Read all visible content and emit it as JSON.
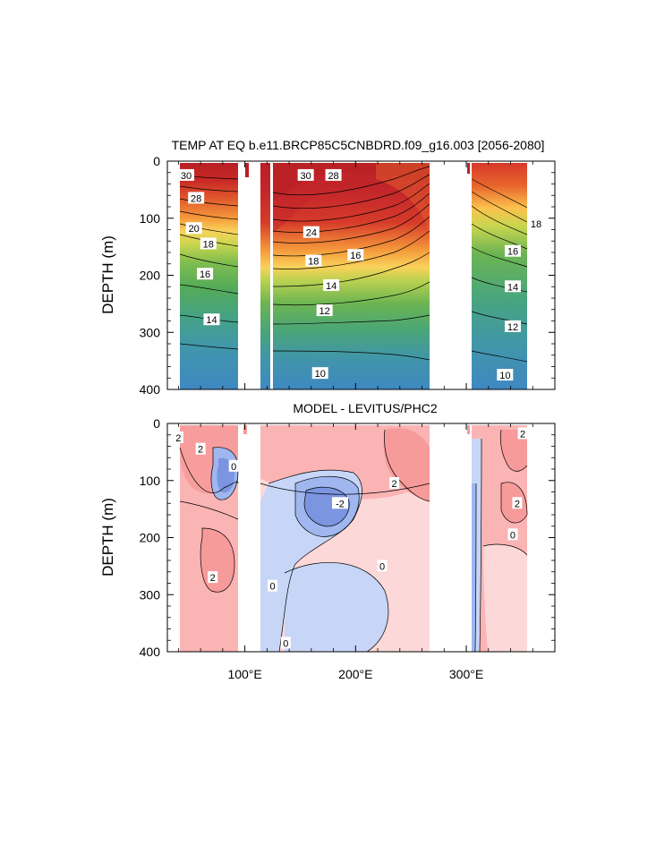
{
  "chart_data": [
    {
      "type": "heatmap",
      "subtype": "filled-contour",
      "title": "TEMP AT EQ b.e11.BRCP85C5CNBDRD.f09_g16.003 [2056-2080]",
      "ylabel": "DEPTH (m)",
      "y_ticks": [
        "0",
        "100",
        "200",
        "300",
        "400"
      ],
      "ylim": [
        0,
        400
      ],
      "y_reversed": true,
      "xlim": [
        30,
        380
      ],
      "x_ticks": [],
      "contour_labels": [
        {
          "text": "30",
          "lon": 47,
          "depth": 25
        },
        {
          "text": "28",
          "lon": 56,
          "depth": 65
        },
        {
          "text": "20",
          "lon": 54,
          "depth": 118
        },
        {
          "text": "18",
          "lon": 67,
          "depth": 145
        },
        {
          "text": "16",
          "lon": 64,
          "depth": 198
        },
        {
          "text": "14",
          "lon": 70,
          "depth": 278
        },
        {
          "text": "30",
          "lon": 155,
          "depth": 25
        },
        {
          "text": "28",
          "lon": 180,
          "depth": 25
        },
        {
          "text": "24",
          "lon": 160,
          "depth": 125
        },
        {
          "text": "18",
          "lon": 162,
          "depth": 175
        },
        {
          "text": "16",
          "lon": 200,
          "depth": 165
        },
        {
          "text": "14",
          "lon": 178,
          "depth": 218
        },
        {
          "text": "12",
          "lon": 172,
          "depth": 262
        },
        {
          "text": "10",
          "lon": 168,
          "depth": 372
        },
        {
          "text": "18",
          "lon": 363,
          "depth": 110
        },
        {
          "text": "16",
          "lon": 342,
          "depth": 158
        },
        {
          "text": "14",
          "lon": 342,
          "depth": 220
        },
        {
          "text": "12",
          "lon": 342,
          "depth": 290
        },
        {
          "text": "10",
          "lon": 335,
          "depth": 375
        }
      ],
      "land_gaps_lon": [
        [
          98,
          118
        ],
        [
          277,
          310
        ]
      ],
      "colormap": [
        "#3f88c2",
        "#3f9ca8",
        "#48a57e",
        "#58ad55",
        "#8cc04f",
        "#c8d64f",
        "#f2e460",
        "#fbc24e",
        "#f4963a",
        "#e8652c",
        "#d63a2a",
        "#b81f24"
      ]
    },
    {
      "type": "heatmap",
      "subtype": "filled-contour",
      "title": "MODEL - LEVITUS/PHC2",
      "ylabel": "DEPTH (m)",
      "y_ticks": [
        "0",
        "100",
        "200",
        "300",
        "400"
      ],
      "ylim": [
        0,
        400
      ],
      "y_reversed": true,
      "xlim": [
        30,
        380
      ],
      "x_ticks": [
        "100°E",
        "200°E",
        "300°E"
      ],
      "x_tick_values": [
        100,
        200,
        300
      ],
      "contour_labels": [
        {
          "text": "2",
          "lon": 40,
          "depth": 25
        },
        {
          "text": "2",
          "lon": 60,
          "depth": 45
        },
        {
          "text": "0",
          "lon": 90,
          "depth": 75
        },
        {
          "text": "2",
          "lon": 235,
          "depth": 105
        },
        {
          "text": "-2",
          "lon": 186,
          "depth": 140
        },
        {
          "text": "0",
          "lon": 342,
          "depth": 195
        },
        {
          "text": "2",
          "lon": 346,
          "depth": 140
        },
        {
          "text": "2",
          "lon": 351,
          "depth": 18
        },
        {
          "text": "0",
          "lon": 224,
          "depth": 250
        },
        {
          "text": "2",
          "lon": 71,
          "depth": 270
        },
        {
          "text": "0",
          "lon": 125,
          "depth": 285
        },
        {
          "text": "0",
          "lon": 137,
          "depth": 385
        }
      ],
      "land_gaps_lon": [
        [
          98,
          118
        ],
        [
          277,
          310
        ]
      ],
      "levels": {
        "positive_strong": "#f79a9a",
        "positive": "#fbb4b4",
        "positive_weak": "#fdd8d8",
        "negative_weak": "#c7d6f7",
        "negative": "#9fb6ef",
        "negative_strong": "#7c95e0"
      }
    }
  ]
}
